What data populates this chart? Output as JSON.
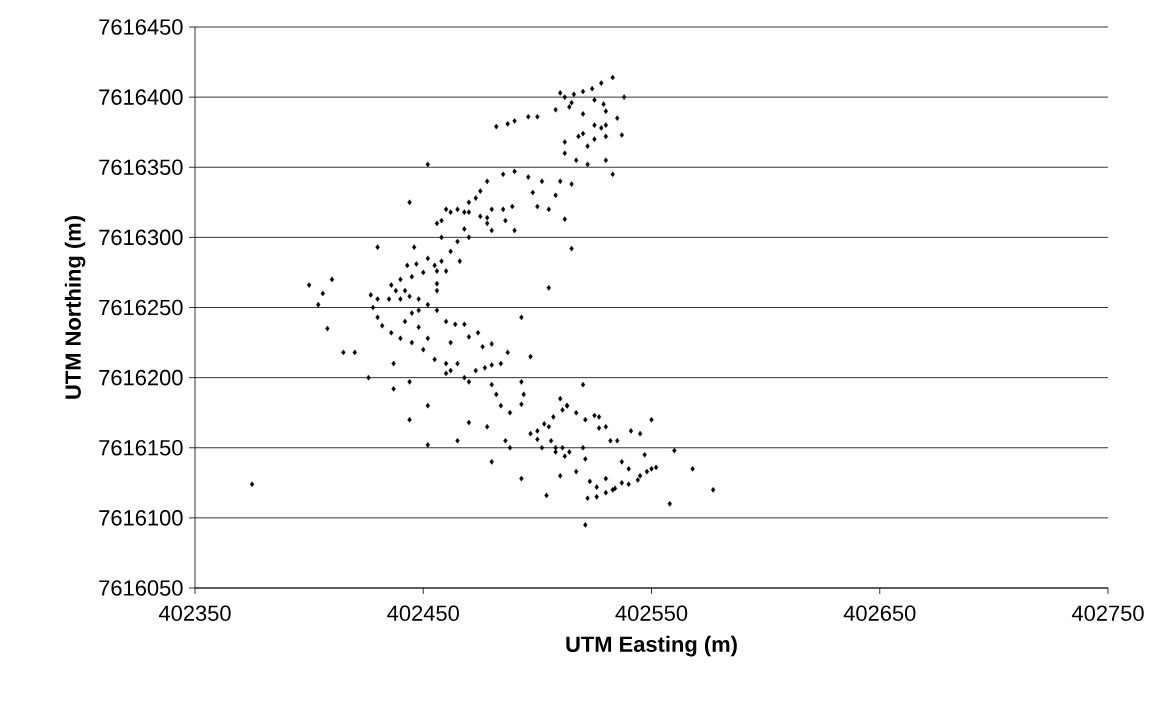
{
  "chart_data": {
    "type": "scatter",
    "xlabel": "UTM Easting (m)",
    "ylabel": "UTM Northing (m)",
    "xlim": [
      402350,
      402750
    ],
    "xticks": [
      402350,
      402450,
      402550,
      402650,
      402750
    ],
    "ylim": [
      7616050,
      7616450
    ],
    "yticks": [
      7616050,
      7616100,
      7616150,
      7616200,
      7616250,
      7616300,
      7616350,
      7616400,
      7616450
    ],
    "grid": "y",
    "marker": "diamond",
    "series": [
      {
        "color": "#000000",
        "x": [
          402533,
          402528,
          402524,
          402520,
          402516,
          402512,
          402510,
          402515,
          402525,
          402529,
          402538,
          402530,
          402535,
          402537,
          402520,
          402525,
          402528,
          402530,
          402530,
          402520,
          402518,
          402525,
          402522,
          402512,
          402512,
          402517,
          402522,
          402530,
          402533,
          402515,
          402510,
          402502,
          402508,
          402498,
          402505,
          402500,
          402496,
          402490,
          402485,
          402482,
          402487,
          402490,
          402496,
          402500,
          402508,
          402514,
          402512,
          402452,
          402444,
          402515,
          402505,
          402493,
          402497,
          402478,
          402475,
          402473,
          402470,
          402468,
          402462,
          402465,
          402460,
          402470,
          402475,
          402478,
          402480,
          402485,
          402489,
          402486,
          402490,
          402480,
          402478,
          402468,
          402470,
          402465,
          402458,
          402456,
          402458,
          402462,
          402466,
          402458,
          402455,
          402452,
          402447,
          402443,
          402446,
          402460,
          402456,
          402450,
          402445,
          402440,
          402436,
          402442,
          402444,
          402448,
          402452,
          402448,
          402445,
          402440,
          402435,
          402430,
          402427,
          402428,
          402430,
          402432,
          402436,
          402442,
          402448,
          402452,
          402456,
          402456,
          402456,
          402460,
          402464,
          402462,
          402430,
          402438,
          402400,
          402404,
          402406,
          402410,
          402408,
          402415,
          402420,
          402426,
          402437,
          402437,
          402444,
          402444,
          402452,
          402452,
          402375,
          402460,
          402465,
          402470,
          402440,
          402445,
          402450,
          402455,
          402460,
          402462,
          402465,
          402468,
          402470,
          402473,
          402477,
          402480,
          402484,
          402487,
          402480,
          402476,
          402474,
          402470,
          402468,
          402480,
          402482,
          402488,
          402493,
          402494,
          402493,
          402480,
          402478,
          402484,
          402486,
          402493,
          402488,
          402497,
          402500,
          402503,
          402507,
          402511,
          402513,
          402505,
          402500,
          402502,
          402506,
          402508,
          402511,
          402514,
          402517,
          402520,
          402521,
          402525,
          402527,
          402530,
          402532,
          402510,
          402513,
          402504,
          402508,
          402510,
          402512,
          402517,
          402520,
          402521,
          402523,
          402526,
          402530,
          402533,
          402537,
          402540,
          402545,
          402550,
          402552,
          402547,
          402545,
          402541,
          402550,
          402560,
          402568,
          402577,
          402558,
          402521,
          402537,
          402548,
          402522,
          402526,
          402530,
          402534,
          402540,
          402544,
          402527,
          402535
        ],
        "values": [
          7616414,
          7616410,
          7616406,
          7616404,
          7616402,
          7616400,
          7616403,
          7616396,
          7616398,
          7616395,
          7616400,
          7616390,
          7616385,
          7616373,
          7616388,
          7616380,
          7616378,
          7616380,
          7616372,
          7616374,
          7616372,
          7616370,
          7616365,
          7616368,
          7616360,
          7616355,
          7616352,
          7616355,
          7616345,
          7616338,
          7616340,
          7616340,
          7616330,
          7616332,
          7616320,
          7616322,
          7616343,
          7616347,
          7616345,
          7616379,
          7616381,
          7616383,
          7616386,
          7616386,
          7616391,
          7616393,
          7616313,
          7616352,
          7616325,
          7616292,
          7616264,
          7616243,
          7616215,
          7616340,
          7616333,
          7616328,
          7616325,
          7616318,
          7616318,
          7616320,
          7616320,
          7616318,
          7616315,
          7616314,
          7616320,
          7616320,
          7616322,
          7616312,
          7616305,
          7616305,
          7616310,
          7616306,
          7616300,
          7616297,
          7616312,
          7616310,
          7616300,
          7616290,
          7616283,
          7616283,
          7616280,
          7616285,
          7616281,
          7616280,
          7616293,
          7616276,
          7616276,
          7616275,
          7616272,
          7616270,
          7616266,
          7616262,
          7616258,
          7616256,
          7616252,
          7616248,
          7616246,
          7616256,
          7616256,
          7616256,
          7616259,
          7616250,
          7616243,
          7616237,
          7616232,
          7616240,
          7616236,
          7616228,
          7616248,
          7616262,
          7616267,
          7616240,
          7616238,
          7616225,
          7616293,
          7616262,
          7616266,
          7616252,
          7616260,
          7616270,
          7616235,
          7616218,
          7616218,
          7616200,
          7616210,
          7616192,
          7616197,
          7616170,
          7616180,
          7616152,
          7616124,
          7616203,
          7616155,
          7616168,
          7616228,
          7616225,
          7616220,
          7616213,
          7616210,
          7616205,
          7616210,
          7616200,
          7616197,
          7616205,
          7616207,
          7616209,
          7616210,
          7616218,
          7616224,
          7616222,
          7616232,
          7616229,
          7616238,
          7616195,
          7616188,
          7616175,
          7616197,
          7616188,
          7616181,
          7616140,
          7616165,
          7616180,
          7616155,
          7616128,
          7616150,
          7616160,
          7616162,
          7616167,
          7616172,
          7616177,
          7616180,
          7616165,
          7616156,
          7616150,
          7616155,
          7616150,
          7616150,
          7616147,
          7616175,
          7616195,
          7616170,
          7616173,
          7616164,
          7616165,
          7616155,
          7616185,
          7616180,
          7616116,
          7616147,
          7616130,
          7616144,
          7616133,
          7616150,
          7616142,
          7616126,
          7616122,
          7616128,
          7616120,
          7616140,
          7616135,
          7616130,
          7616135,
          7616136,
          7616145,
          7616160,
          7616162,
          7616170,
          7616148,
          7616135,
          7616120,
          7616110,
          7616095,
          7616125,
          7616133,
          7616114,
          7616115,
          7616118,
          7616121,
          7616124,
          7616127,
          7616172,
          7616155
        ]
      }
    ]
  }
}
